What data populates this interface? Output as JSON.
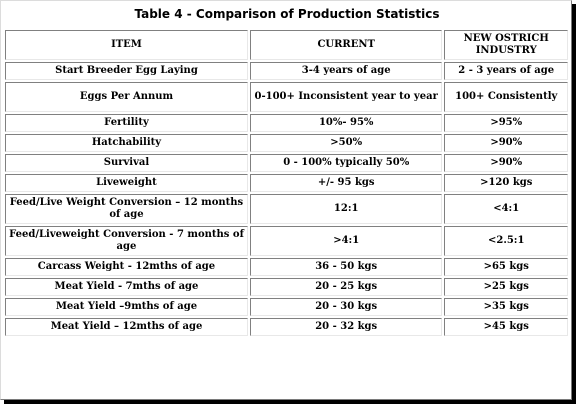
{
  "caption": "Table 4 - Comparison of Production Statistics",
  "headers": [
    "ITEM",
    "CURRENT",
    "NEW OSTRICH INDUSTRY"
  ],
  "rows": [
    [
      "Start Breeder Egg Laying",
      "3-4 years of age",
      "2 - 3 years of age"
    ],
    [
      "Eggs Per Annum",
      "0-100+ Inconsistent year to year",
      "100+ Consistently"
    ],
    [
      "Fertility",
      "10%- 95%",
      ">95%"
    ],
    [
      "Hatchability",
      ">50%",
      ">90%"
    ],
    [
      "Survival",
      "0 - 100% typically 50%",
      ">90%"
    ],
    [
      "Liveweight",
      "+/- 95 kgs",
      ">120 kgs"
    ],
    [
      "Feed/Live Weight Conversion – 12 months of age",
      "12:1",
      "<4:1"
    ],
    [
      "Feed/Liveweight Conversion -      7 months of age",
      ">4:1",
      "<2.5:1"
    ],
    [
      "Carcass Weight - 12mths of age",
      "36 - 50 kgs",
      ">65 kgs"
    ],
    [
      "Meat Yield - 7mths of age",
      "20 - 25 kgs",
      ">25 kgs"
    ],
    [
      "Meat Yield  –9mths of age",
      "20 - 30 kgs",
      ">35 kgs"
    ],
    [
      "Meat Yield – 12mths of age",
      "20 - 32 kgs",
      ">45 kgs"
    ]
  ]
}
